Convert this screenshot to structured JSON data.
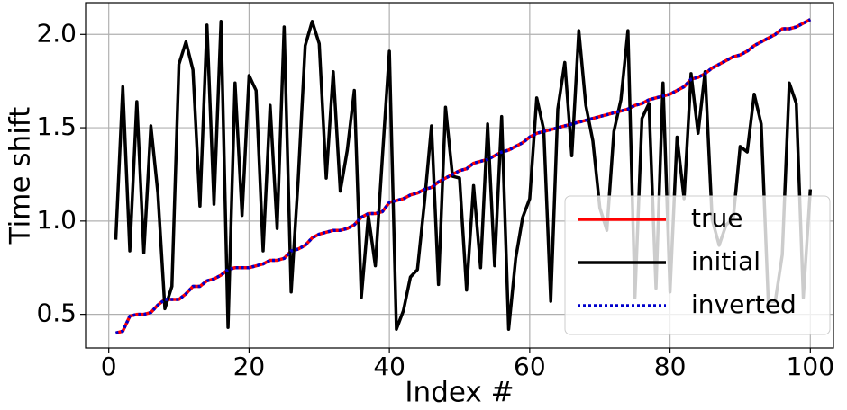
{
  "chart_data": {
    "type": "line",
    "xlabel": "Index #",
    "ylabel": "Time shift",
    "x": [
      1,
      2,
      3,
      4,
      5,
      6,
      7,
      8,
      9,
      10,
      11,
      12,
      13,
      14,
      15,
      16,
      17,
      18,
      19,
      20,
      21,
      22,
      23,
      24,
      25,
      26,
      27,
      28,
      29,
      30,
      31,
      32,
      33,
      34,
      35,
      36,
      37,
      38,
      39,
      40,
      41,
      42,
      43,
      44,
      45,
      46,
      47,
      48,
      49,
      50,
      51,
      52,
      53,
      54,
      55,
      56,
      57,
      58,
      59,
      60,
      61,
      62,
      63,
      64,
      65,
      66,
      67,
      68,
      69,
      70,
      71,
      72,
      73,
      74,
      75,
      76,
      77,
      78,
      79,
      80,
      81,
      82,
      83,
      84,
      85,
      86,
      87,
      88,
      89,
      90,
      91,
      92,
      93,
      94,
      95,
      96,
      97,
      98,
      99,
      100
    ],
    "series": [
      {
        "name": "true",
        "color": "#ff0000",
        "linestyle": "solid",
        "values": [
          0.4,
          0.41,
          0.49,
          0.5,
          0.5,
          0.51,
          0.55,
          0.58,
          0.58,
          0.58,
          0.61,
          0.65,
          0.65,
          0.68,
          0.69,
          0.71,
          0.74,
          0.75,
          0.75,
          0.75,
          0.76,
          0.77,
          0.79,
          0.79,
          0.8,
          0.84,
          0.85,
          0.87,
          0.91,
          0.93,
          0.94,
          0.95,
          0.95,
          0.96,
          0.98,
          1.02,
          1.04,
          1.04,
          1.05,
          1.1,
          1.11,
          1.12,
          1.14,
          1.15,
          1.17,
          1.18,
          1.21,
          1.23,
          1.25,
          1.27,
          1.28,
          1.31,
          1.32,
          1.33,
          1.35,
          1.37,
          1.38,
          1.4,
          1.42,
          1.45,
          1.47,
          1.48,
          1.49,
          1.5,
          1.51,
          1.52,
          1.53,
          1.54,
          1.55,
          1.56,
          1.57,
          1.58,
          1.59,
          1.6,
          1.62,
          1.63,
          1.65,
          1.66,
          1.67,
          1.68,
          1.7,
          1.72,
          1.76,
          1.77,
          1.79,
          1.82,
          1.84,
          1.86,
          1.88,
          1.89,
          1.91,
          1.94,
          1.96,
          1.98,
          2.0,
          2.03,
          2.03,
          2.04,
          2.06,
          2.08
        ]
      },
      {
        "name": "initial",
        "color": "#000000",
        "linestyle": "solid",
        "values": [
          0.9,
          1.72,
          0.84,
          1.64,
          0.83,
          1.51,
          1.15,
          0.53,
          0.65,
          1.84,
          1.96,
          1.81,
          1.08,
          2.05,
          1.09,
          2.07,
          0.43,
          1.74,
          1.03,
          1.78,
          1.7,
          0.84,
          1.62,
          0.96,
          2.04,
          0.62,
          1.22,
          1.94,
          2.07,
          1.95,
          1.23,
          1.8,
          1.16,
          1.38,
          1.7,
          0.59,
          1.03,
          0.76,
          1.34,
          1.91,
          0.42,
          0.52,
          0.7,
          0.74,
          1.1,
          1.51,
          0.66,
          1.61,
          1.24,
          1.23,
          0.63,
          1.19,
          0.75,
          1.52,
          0.76,
          1.56,
          0.42,
          0.8,
          1.02,
          1.12,
          1.66,
          1.49,
          0.57,
          1.6,
          1.85,
          1.35,
          2.02,
          1.62,
          1.43,
          1.07,
          0.95,
          1.48,
          1.65,
          2.02,
          0.59,
          1.55,
          1.63,
          0.64,
          1.74,
          0.62,
          1.45,
          1.12,
          1.79,
          1.47,
          1.8,
          1.01,
          0.87,
          0.98,
          1.01,
          1.4,
          1.37,
          1.68,
          1.52,
          0.57,
          0.57,
          0.82,
          1.74,
          1.63,
          0.59,
          1.17
        ]
      },
      {
        "name": "inverted",
        "color": "#0000cc",
        "linestyle": "dotted",
        "values": [
          0.4,
          0.41,
          0.49,
          0.5,
          0.5,
          0.51,
          0.55,
          0.58,
          0.58,
          0.58,
          0.61,
          0.65,
          0.65,
          0.68,
          0.69,
          0.71,
          0.74,
          0.75,
          0.75,
          0.75,
          0.76,
          0.77,
          0.79,
          0.79,
          0.8,
          0.84,
          0.85,
          0.87,
          0.91,
          0.93,
          0.94,
          0.95,
          0.95,
          0.96,
          0.98,
          1.02,
          1.04,
          1.04,
          1.05,
          1.1,
          1.11,
          1.12,
          1.14,
          1.15,
          1.17,
          1.18,
          1.21,
          1.23,
          1.25,
          1.27,
          1.28,
          1.31,
          1.32,
          1.33,
          1.35,
          1.37,
          1.38,
          1.4,
          1.42,
          1.45,
          1.47,
          1.48,
          1.49,
          1.5,
          1.51,
          1.52,
          1.53,
          1.54,
          1.55,
          1.56,
          1.57,
          1.58,
          1.59,
          1.6,
          1.62,
          1.63,
          1.65,
          1.66,
          1.67,
          1.68,
          1.7,
          1.72,
          1.76,
          1.77,
          1.79,
          1.82,
          1.84,
          1.86,
          1.88,
          1.89,
          1.91,
          1.94,
          1.96,
          1.98,
          2.0,
          2.03,
          2.03,
          2.04,
          2.06,
          2.08
        ]
      }
    ],
    "xlim": [
      -3.3,
      103.3
    ],
    "xticks": [
      0,
      20,
      40,
      60,
      80,
      100
    ],
    "ylim": [
      0.32,
      2.17
    ],
    "yticks": [
      0.5,
      {
        "value": 1,
        "label": "1.0"
      },
      1.5,
      {
        "value": 2,
        "label": "2.0"
      }
    ],
    "grid": true,
    "legend": "lower right"
  }
}
